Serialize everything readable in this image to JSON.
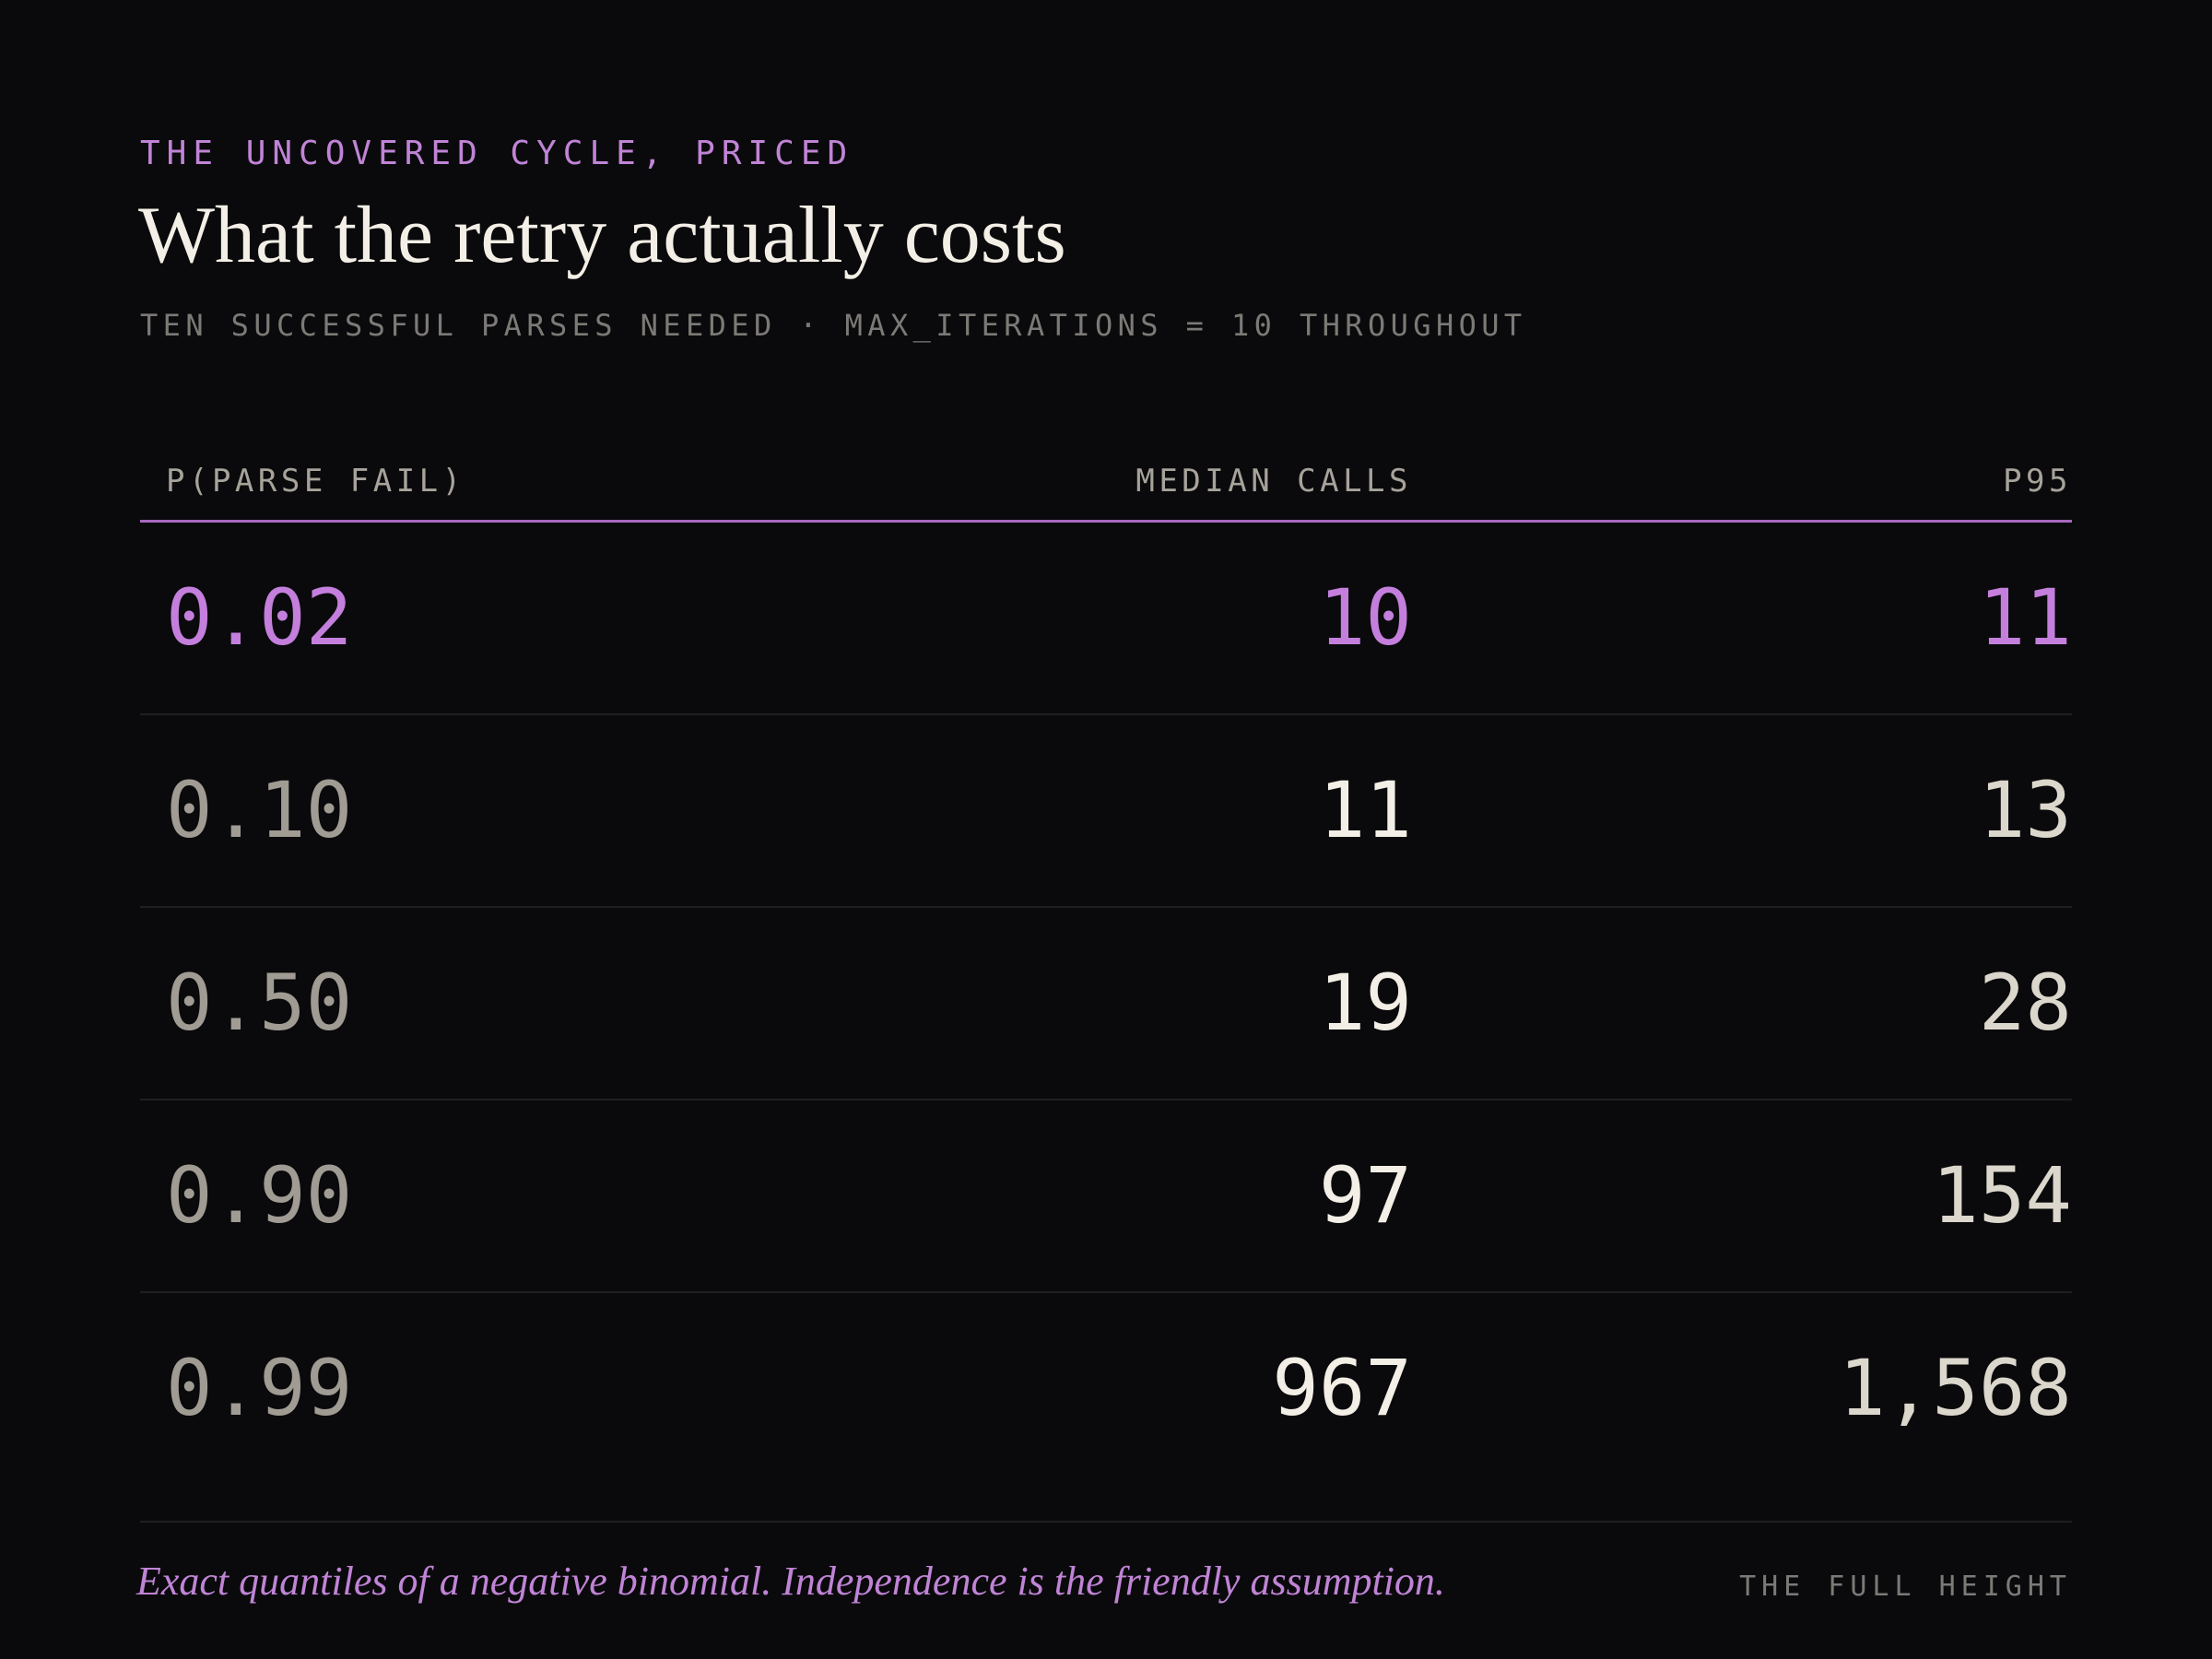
{
  "header": {
    "eyebrow": "THE UNCOVERED CYCLE, PRICED",
    "title": "What the retry actually costs",
    "subtitle": "TEN SUCCESSFUL PARSES NEEDED · MAX_ITERATIONS = 10 THROUGHOUT"
  },
  "chart_data": {
    "type": "table",
    "columns": [
      "P(PARSE FAIL)",
      "MEDIAN CALLS",
      "P95"
    ],
    "rows": [
      {
        "p_fail": "0.02",
        "median_calls": "10",
        "p95": "11",
        "highlight": true
      },
      {
        "p_fail": "0.10",
        "median_calls": "11",
        "p95": "13",
        "highlight": false
      },
      {
        "p_fail": "0.50",
        "median_calls": "19",
        "p95": "28",
        "highlight": false
      },
      {
        "p_fail": "0.90",
        "median_calls": "97",
        "p95": "154",
        "highlight": false
      },
      {
        "p_fail": "0.99",
        "median_calls": "967",
        "p95": "1,568",
        "highlight": false
      }
    ],
    "highlight_color": "#c47fdd",
    "accent_rule_color": "#a668bf"
  },
  "footer": {
    "note": "Exact quantiles of a negative binomial. Independence is the friendly assumption.",
    "brand": "THE FULL HEIGHT"
  }
}
